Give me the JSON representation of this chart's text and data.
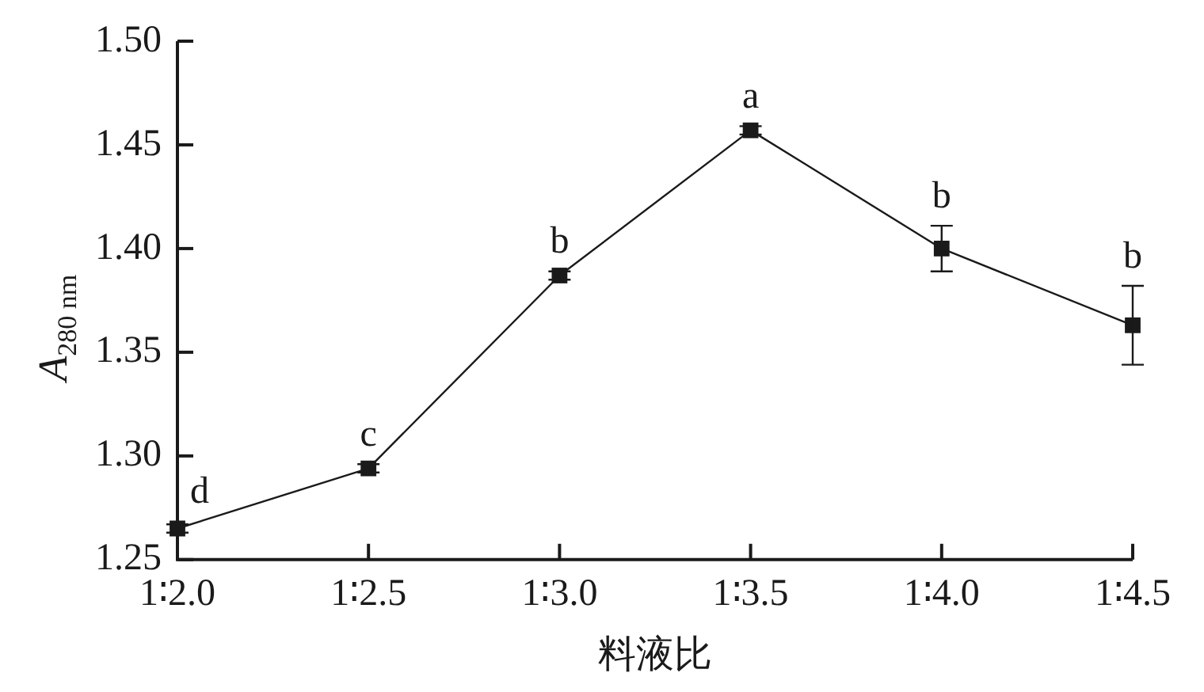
{
  "chart_data": {
    "type": "line",
    "xlabel": "料液比",
    "ylabel": "A$_{280 nm}$",
    "categories": [
      "1∶2.0",
      "1∶2.5",
      "1∶3.0",
      "1∶3.5",
      "1∶4.0",
      "1∶4.5"
    ],
    "series": [
      {
        "color": "#1a1a1a",
        "values": [
          1.265,
          1.294,
          1.387,
          1.457,
          1.4,
          1.363
        ],
        "errors": [
          0.002,
          0.002,
          0.002,
          0.002,
          0.011,
          0.019
        ]
      }
    ],
    "ylim": [
      1.25,
      1.5
    ],
    "yticks": [
      {
        "value": 1.25,
        "label": "1.25"
      },
      {
        "value": 1.3,
        "label": "1.30"
      },
      {
        "value": 1.35,
        "label": "1.35"
      },
      {
        "value": 1.4,
        "label": "1.40"
      },
      {
        "value": 1.45,
        "label": "1.45"
      },
      {
        "value": 1.5,
        "label": "1.50"
      }
    ],
    "annotations": [
      {
        "text": "d",
        "x": "1∶2.0",
        "y": 1.265
      },
      {
        "text": "c",
        "x": "1∶2.5",
        "y": 1.294
      },
      {
        "text": "b",
        "x": "1∶3.0",
        "y": 1.387
      },
      {
        "text": "a",
        "x": "1∶3.5",
        "y": 1.457
      },
      {
        "text": "b",
        "x": "1∶4.0",
        "y": 1.4
      },
      {
        "text": "b",
        "x": "1∶4.5",
        "y": 1.363
      }
    ],
    "grid": false,
    "legend": false,
    "marker": "square",
    "line_style": "solid"
  }
}
